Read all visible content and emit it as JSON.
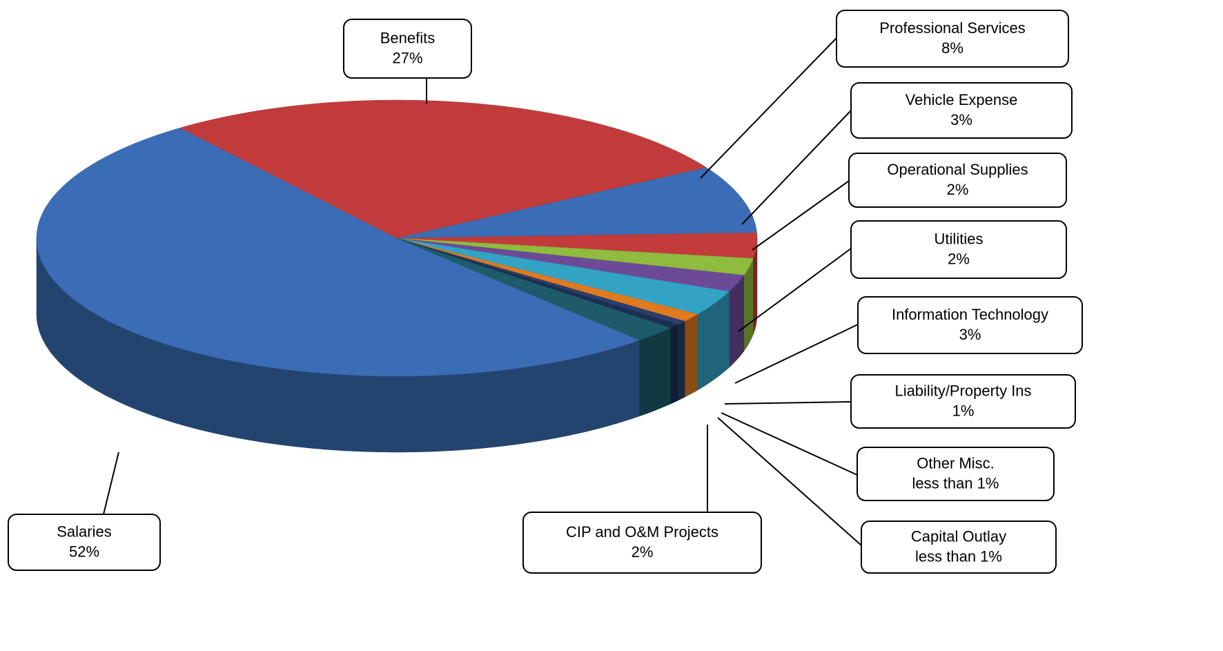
{
  "chart_data": {
    "type": "pie",
    "categories": [
      "Salaries",
      "Benefits",
      "Professional Services",
      "Vehicle Expense",
      "Operational Supplies",
      "Utilities",
      "Information Technology",
      "Liability/Property Ins",
      "Other Misc.",
      "Capital Outlay",
      "CIP and O&M Projects"
    ],
    "values": [
      52,
      27,
      8,
      3,
      2,
      2,
      3,
      1,
      0.5,
      0.5,
      2
    ],
    "value_labels": [
      "52%",
      "27%",
      "8%",
      "3%",
      "2%",
      "2%",
      "3%",
      "1%",
      "less than 1%",
      "less than 1%",
      "2%"
    ],
    "colors": [
      "#3a6db5",
      "#c23b3b",
      "#3a6db5",
      "#c23b3b",
      "#8fbb3e",
      "#6c4a98",
      "#33a3c4",
      "#e07a1f",
      "#2a3f6c",
      "#1c2f50",
      "#1d5b6b"
    ]
  }
}
